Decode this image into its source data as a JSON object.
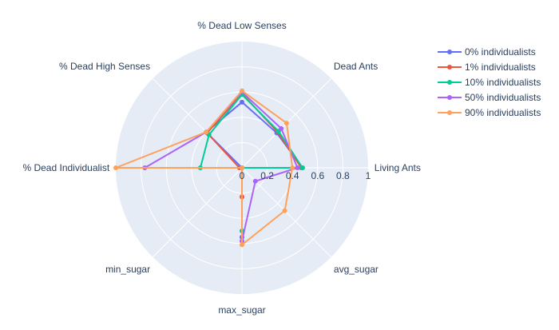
{
  "chart_data": {
    "type": "radar",
    "title": "",
    "categories": [
      "Living Ants",
      "Dead Ants",
      "% Dead Low Senses",
      "% Dead High Senses",
      "% Dead Individualist",
      "min_sugar",
      "max_sugar",
      "avg_sugar"
    ],
    "radial_ticks": [
      "0",
      "0.2",
      "0.4",
      "0.6",
      "0.8",
      "1"
    ],
    "radial_range": [
      0,
      1
    ],
    "grid": true,
    "legend_position": "top-right",
    "series": [
      {
        "name": "0% individualists",
        "color": "#636efa",
        "values": [
          0.48,
          0.39,
          0.52,
          0.4,
          0.0,
          0.0,
          0.55,
          0.0
        ]
      },
      {
        "name": "1% individualists",
        "color": "#ef553b",
        "values": [
          0.47,
          0.4,
          0.59,
          0.39,
          0.02,
          0.0,
          0.23,
          0.0
        ]
      },
      {
        "name": "10% individualists",
        "color": "#00cc96",
        "values": [
          0.48,
          0.41,
          0.58,
          0.37,
          0.33,
          0.0,
          0.5,
          0.0
        ]
      },
      {
        "name": "50% individualists",
        "color": "#ab63fa",
        "values": [
          0.44,
          0.44,
          0.6,
          0.4,
          0.77,
          0.0,
          0.58,
          0.15
        ]
      },
      {
        "name": "90% individualists",
        "color": "#ffa15a",
        "values": [
          0.4,
          0.5,
          0.61,
          0.4,
          1.0,
          0.0,
          0.61,
          0.48
        ]
      }
    ]
  }
}
